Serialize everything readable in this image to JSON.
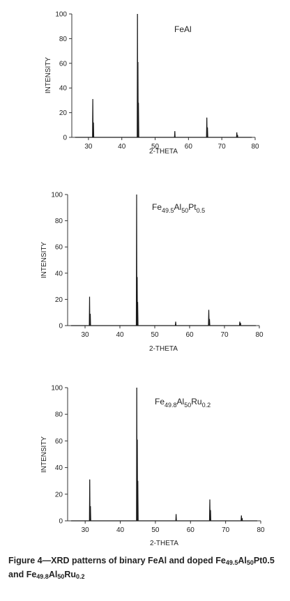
{
  "chart_data": [
    {
      "type": "line",
      "label_parts": [
        {
          "t": "FeAl"
        }
      ],
      "xlabel": "2-THETA",
      "ylabel": "INTENSITY",
      "xlim": [
        25,
        80
      ],
      "ylim": [
        0,
        100
      ],
      "xticks": [
        30,
        40,
        50,
        60,
        70,
        80
      ],
      "yticks": [
        0,
        20,
        40,
        60,
        80,
        100
      ],
      "peaks": [
        {
          "x": 31.3,
          "y": 31
        },
        {
          "x": 31.5,
          "y": 12
        },
        {
          "x": 44.7,
          "y": 100
        },
        {
          "x": 44.85,
          "y": 61
        },
        {
          "x": 45.0,
          "y": 28
        },
        {
          "x": 55.9,
          "y": 5
        },
        {
          "x": 65.5,
          "y": 16
        },
        {
          "x": 65.7,
          "y": 8
        },
        {
          "x": 74.5,
          "y": 4
        },
        {
          "x": 74.7,
          "y": 2
        }
      ]
    },
    {
      "type": "line",
      "label_parts": [
        {
          "t": "Fe"
        },
        {
          "t": "49.5",
          "sub": true
        },
        {
          "t": "Al"
        },
        {
          "t": "50",
          "sub": true
        },
        {
          "t": "Pt"
        },
        {
          "t": "0.5",
          "sub": true
        }
      ],
      "xlabel": "2-THETA",
      "ylabel": "INTENSITY",
      "xlim": [
        25,
        80
      ],
      "ylim": [
        0,
        100
      ],
      "xticks": [
        30,
        40,
        50,
        60,
        70,
        80
      ],
      "yticks": [
        0,
        20,
        40,
        60,
        80,
        100
      ],
      "peaks": [
        {
          "x": 31.3,
          "y": 22
        },
        {
          "x": 31.5,
          "y": 9
        },
        {
          "x": 44.8,
          "y": 100
        },
        {
          "x": 44.95,
          "y": 37
        },
        {
          "x": 45.1,
          "y": 18
        },
        {
          "x": 56.0,
          "y": 3
        },
        {
          "x": 65.5,
          "y": 12
        },
        {
          "x": 65.7,
          "y": 5
        },
        {
          "x": 74.4,
          "y": 3
        },
        {
          "x": 74.6,
          "y": 2
        }
      ]
    },
    {
      "type": "line",
      "label_parts": [
        {
          "t": "Fe"
        },
        {
          "t": "49.8",
          "sub": true
        },
        {
          "t": "Al"
        },
        {
          "t": "50",
          "sub": true
        },
        {
          "t": "Ru"
        },
        {
          "t": "0.2",
          "sub": true
        }
      ],
      "xlabel": "2-THETA",
      "ylabel": "INTENSITY",
      "xlim": [
        25,
        80
      ],
      "ylim": [
        0,
        100
      ],
      "xticks": [
        30,
        40,
        50,
        60,
        70,
        80
      ],
      "yticks": [
        0,
        20,
        40,
        60,
        80,
        100
      ],
      "peaks": [
        {
          "x": 31.3,
          "y": 31
        },
        {
          "x": 31.5,
          "y": 11
        },
        {
          "x": 44.7,
          "y": 100
        },
        {
          "x": 44.85,
          "y": 61
        },
        {
          "x": 45.0,
          "y": 30
        },
        {
          "x": 55.9,
          "y": 5
        },
        {
          "x": 65.5,
          "y": 16
        },
        {
          "x": 65.7,
          "y": 8
        },
        {
          "x": 74.5,
          "y": 4
        },
        {
          "x": 74.7,
          "y": 2
        }
      ]
    }
  ],
  "caption_parts": [
    {
      "t": "Figure 4—XRD patterns of binary FeAl and doped Fe"
    },
    {
      "t": "49.5",
      "sub": true
    },
    {
      "t": "Al"
    },
    {
      "t": "50",
      "sub": true
    },
    {
      "t": "Pt0.5 and Fe"
    },
    {
      "t": "49.8",
      "sub": true
    },
    {
      "t": "Al"
    },
    {
      "t": "50",
      "sub": true
    },
    {
      "t": "Ru"
    },
    {
      "t": "0.2",
      "sub": true
    }
  ]
}
